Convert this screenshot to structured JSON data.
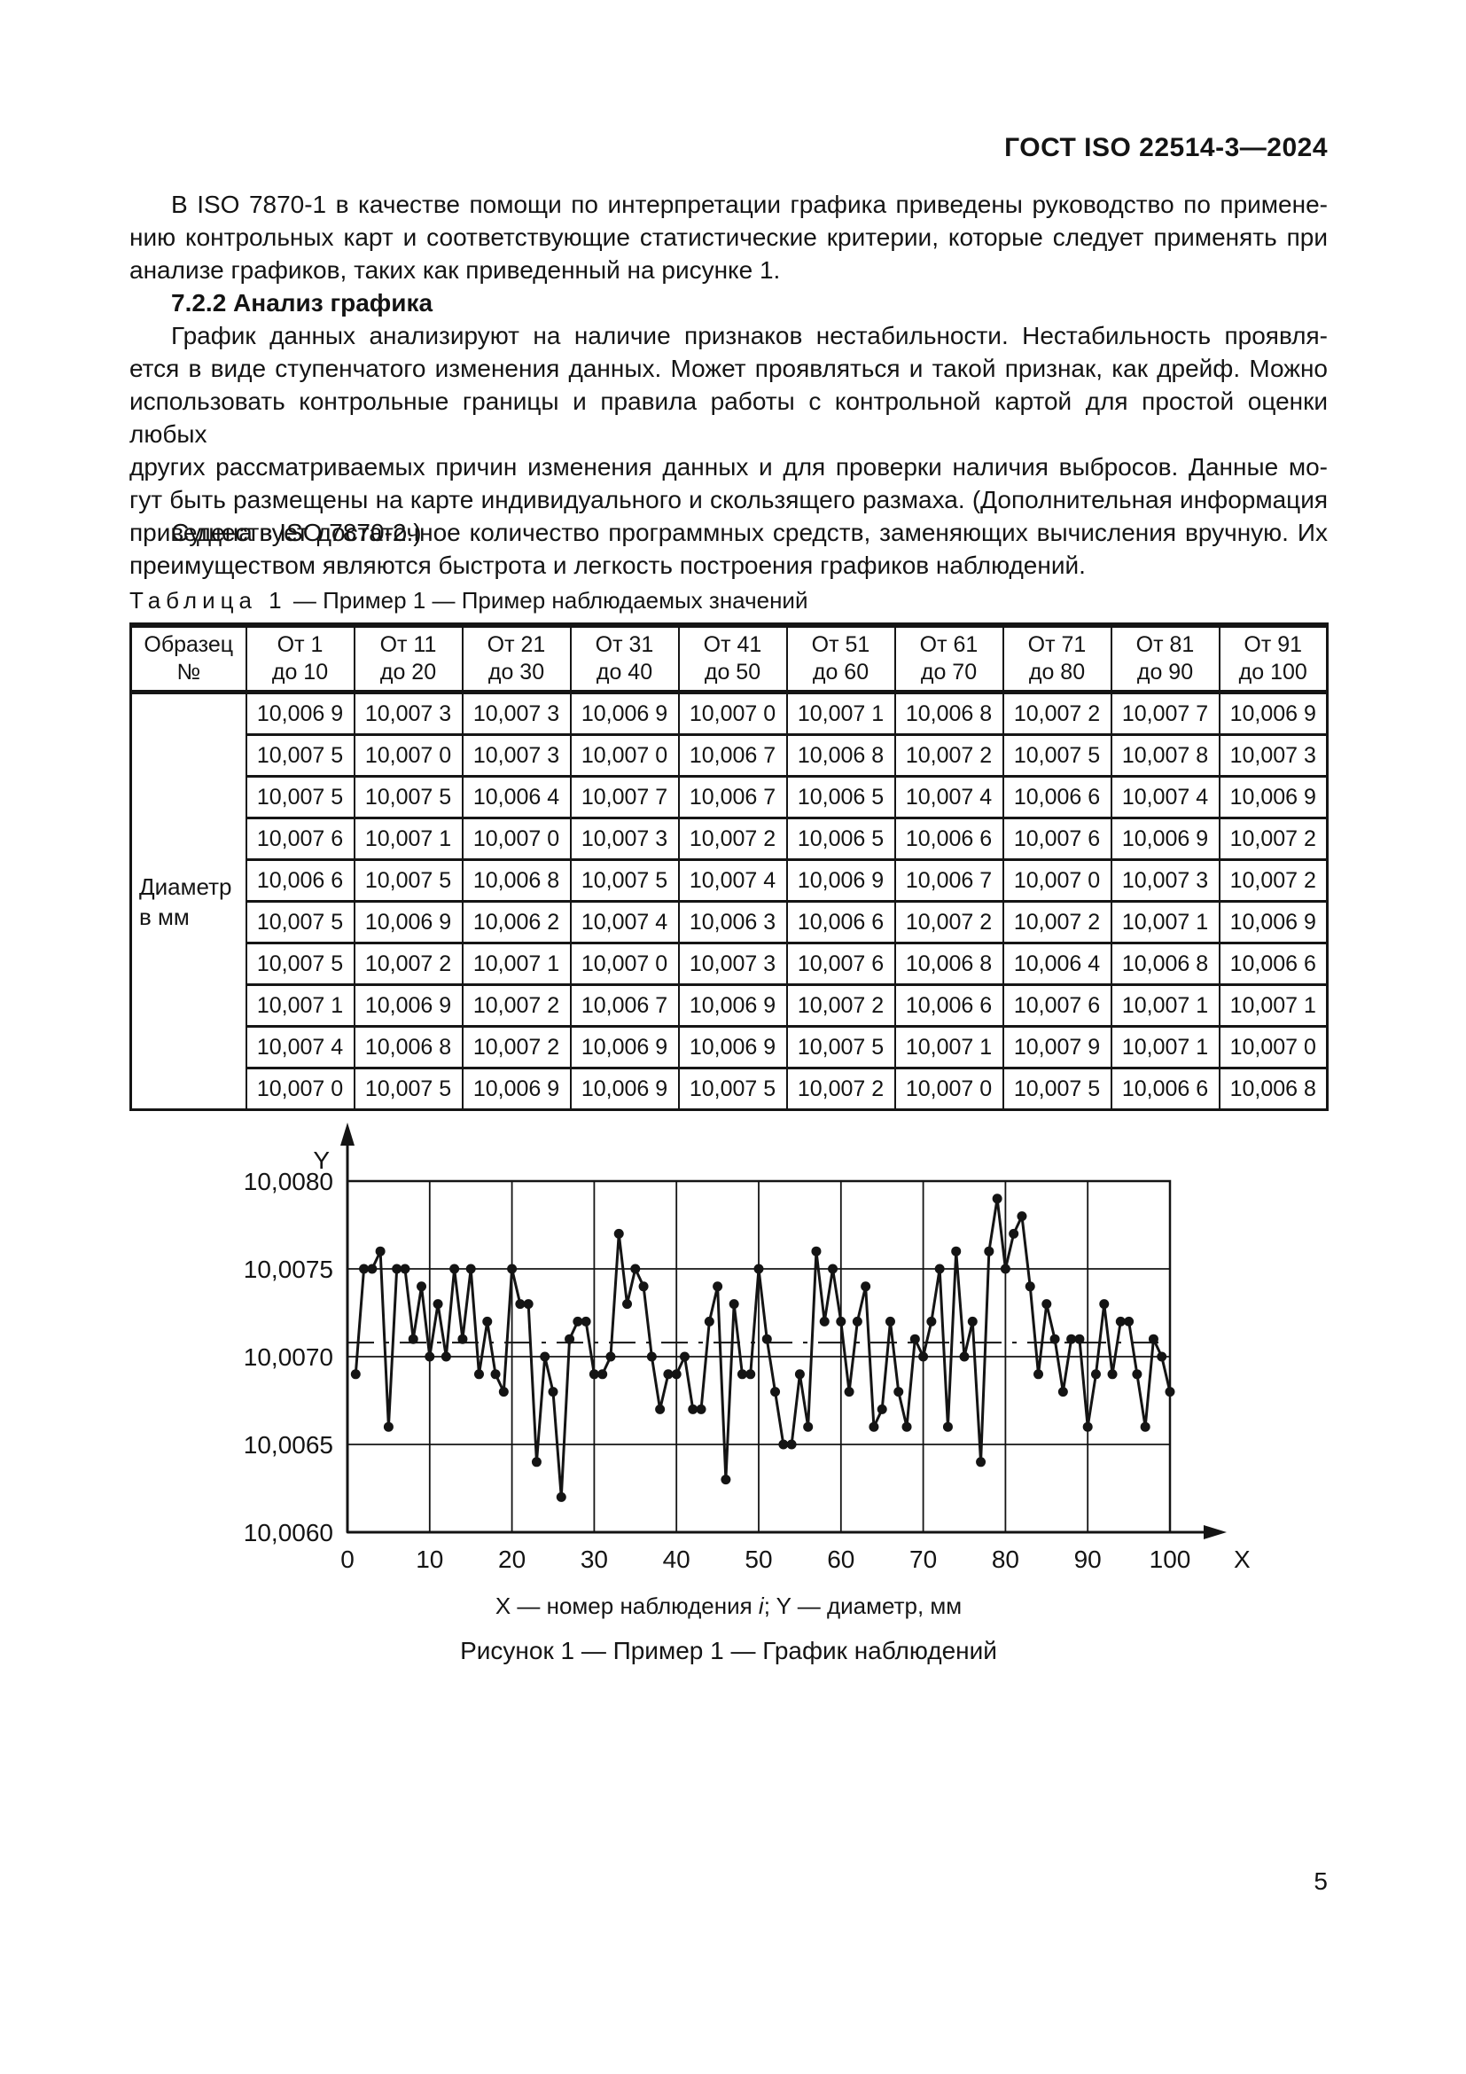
{
  "header": {
    "title": "ГОСТ ISO 22514-3—2024"
  },
  "paragraphs": {
    "p1_lines": [
      "В ISO 7870-1 в качестве помощи по интерпретации графика приведены руководство по примене-",
      "нию контрольных карт и соответствующие статистические критерии, которые следует применять при",
      "анализе графиков, таких как приведенный на рисунке 1."
    ],
    "heading_722": "7.2.2 Анализ графика",
    "p2_lines": [
      "График данных анализируют на наличие признаков нестабильности. Нестабильность проявля-",
      "ется в виде ступенчатого изменения данных. Может проявляться и такой признак, как дрейф. Можно",
      "использовать контрольные границы и правила работы с контрольной картой для простой оценки любых",
      "других рассматриваемых причин изменения данных и для проверки наличия выбросов. Данные мо-",
      "гут быть размещены на карте индивидуального и скользящего размаха. (Дополнительная информация",
      "приведена в ISO 7870-2.)"
    ],
    "p3_lines": [
      "Существует достаточное количество программных средств, заменяющих вычисления вручную. Их",
      "преимуществом являются быстрота и легкость построения графиков наблюдений."
    ]
  },
  "table": {
    "caption_label": "Таблица 1",
    "caption_dash": " — ",
    "caption_title": "Пример 1 — Пример наблюдаемых значений",
    "corner_header": [
      "Образец",
      "№"
    ],
    "col_headers": [
      [
        "От 1",
        "до 10"
      ],
      [
        "От 11",
        "до 20"
      ],
      [
        "От 21",
        "до 30"
      ],
      [
        "От 31",
        "до 40"
      ],
      [
        "От 41",
        "до 50"
      ],
      [
        "От 51",
        "до 60"
      ],
      [
        "От 61",
        "до 70"
      ],
      [
        "От 71",
        "до 80"
      ],
      [
        "От 81",
        "до 90"
      ],
      [
        "От 91",
        "до 100"
      ]
    ],
    "row_label": [
      "Диаметр",
      "в мм"
    ],
    "rows": [
      [
        "10,006 9",
        "10,007 3",
        "10,007 3",
        "10,006 9",
        "10,007 0",
        "10,007 1",
        "10,006 8",
        "10,007 2",
        "10,007 7",
        "10,006 9"
      ],
      [
        "10,007 5",
        "10,007 0",
        "10,007 3",
        "10,007 0",
        "10,006 7",
        "10,006 8",
        "10,007 2",
        "10,007 5",
        "10,007 8",
        "10,007 3"
      ],
      [
        "10,007 5",
        "10,007 5",
        "10,006 4",
        "10,007 7",
        "10,006 7",
        "10,006 5",
        "10,007 4",
        "10,006 6",
        "10,007 4",
        "10,006 9"
      ],
      [
        "10,007 6",
        "10,007 1",
        "10,007 0",
        "10,007 3",
        "10,007 2",
        "10,006 5",
        "10,006 6",
        "10,007 6",
        "10,006 9",
        "10,007 2"
      ],
      [
        "10,006 6",
        "10,007 5",
        "10,006 8",
        "10,007 5",
        "10,007 4",
        "10,006 9",
        "10,006 7",
        "10,007 0",
        "10,007 3",
        "10,007 2"
      ],
      [
        "10,007 5",
        "10,006 9",
        "10,006 2",
        "10,007 4",
        "10,006 3",
        "10,006 6",
        "10,007 2",
        "10,007 2",
        "10,007 1",
        "10,006 9"
      ],
      [
        "10,007 5",
        "10,007 2",
        "10,007 1",
        "10,007 0",
        "10,007 3",
        "10,007 6",
        "10,006 8",
        "10,006 4",
        "10,006 8",
        "10,006 6"
      ],
      [
        "10,007 1",
        "10,006 9",
        "10,007 2",
        "10,006 7",
        "10,006 9",
        "10,007 2",
        "10,006 6",
        "10,007 6",
        "10,007 1",
        "10,007 1"
      ],
      [
        "10,007 4",
        "10,006 8",
        "10,007 2",
        "10,006 9",
        "10,006 9",
        "10,007 5",
        "10,007 1",
        "10,007 9",
        "10,007 1",
        "10,007 0"
      ],
      [
        "10,007 0",
        "10,007 5",
        "10,006 9",
        "10,006 9",
        "10,007 5",
        "10,007 2",
        "10,007 0",
        "10,007 5",
        "10,006 6",
        "10,006 8"
      ]
    ]
  },
  "figure": {
    "note_x": "X — номер наблюдения ",
    "note_i": "i",
    "note_rest": "; Y — диаметр, мм",
    "caption": "Рисунок 1 — Пример 1 — График наблюдений"
  },
  "page": {
    "number": "5"
  },
  "chart_data": {
    "type": "line",
    "title": "Рисунок 1 — Пример 1 — График наблюдений",
    "xlabel": "X",
    "ylabel": "Y",
    "x_axis_meaning": "номер наблюдения i",
    "y_axis_meaning": "диаметр, мм",
    "xlim": [
      0,
      100
    ],
    "ylim": [
      10.006,
      10.008
    ],
    "x_ticks": [
      0,
      10,
      20,
      30,
      40,
      50,
      60,
      70,
      80,
      90,
      100
    ],
    "y_tick_labels": [
      "10,0080",
      "10,0075",
      "10,0070",
      "10,0065",
      "10,0060"
    ],
    "y_tick_values": [
      10.008,
      10.0075,
      10.007,
      10.0065,
      10.006
    ],
    "grid": true,
    "center_line": 10.00708,
    "marker": "dot",
    "line_color": "#141414",
    "x": [
      1,
      2,
      3,
      4,
      5,
      6,
      7,
      8,
      9,
      10,
      11,
      12,
      13,
      14,
      15,
      16,
      17,
      18,
      19,
      20,
      21,
      22,
      23,
      24,
      25,
      26,
      27,
      28,
      29,
      30,
      31,
      32,
      33,
      34,
      35,
      36,
      37,
      38,
      39,
      40,
      41,
      42,
      43,
      44,
      45,
      46,
      47,
      48,
      49,
      50,
      51,
      52,
      53,
      54,
      55,
      56,
      57,
      58,
      59,
      60,
      61,
      62,
      63,
      64,
      65,
      66,
      67,
      68,
      69,
      70,
      71,
      72,
      73,
      74,
      75,
      76,
      77,
      78,
      79,
      80,
      81,
      82,
      83,
      84,
      85,
      86,
      87,
      88,
      89,
      90,
      91,
      92,
      93,
      94,
      95,
      96,
      97,
      98,
      99,
      100
    ],
    "values": [
      10.0069,
      10.0075,
      10.0075,
      10.0076,
      10.0066,
      10.0075,
      10.0075,
      10.0071,
      10.0074,
      10.007,
      10.0073,
      10.007,
      10.0075,
      10.0071,
      10.0075,
      10.0069,
      10.0072,
      10.0069,
      10.0068,
      10.0075,
      10.0073,
      10.0073,
      10.0064,
      10.007,
      10.0068,
      10.0062,
      10.0071,
      10.0072,
      10.0072,
      10.0069,
      10.0069,
      10.007,
      10.0077,
      10.0073,
      10.0075,
      10.0074,
      10.007,
      10.0067,
      10.0069,
      10.0069,
      10.007,
      10.0067,
      10.0067,
      10.0072,
      10.0074,
      10.0063,
      10.0073,
      10.0069,
      10.0069,
      10.0075,
      10.0071,
      10.0068,
      10.0065,
      10.0065,
      10.0069,
      10.0066,
      10.0076,
      10.0072,
      10.0075,
      10.0072,
      10.0068,
      10.0072,
      10.0074,
      10.0066,
      10.0067,
      10.0072,
      10.0068,
      10.0066,
      10.0071,
      10.007,
      10.0072,
      10.0075,
      10.0066,
      10.0076,
      10.007,
      10.0072,
      10.0064,
      10.0076,
      10.0079,
      10.0075,
      10.0077,
      10.0078,
      10.0074,
      10.0069,
      10.0073,
      10.0071,
      10.0068,
      10.0071,
      10.0071,
      10.0066,
      10.0069,
      10.0073,
      10.0069,
      10.0072,
      10.0072,
      10.0069,
      10.0066,
      10.0071,
      10.007,
      10.0068
    ]
  }
}
